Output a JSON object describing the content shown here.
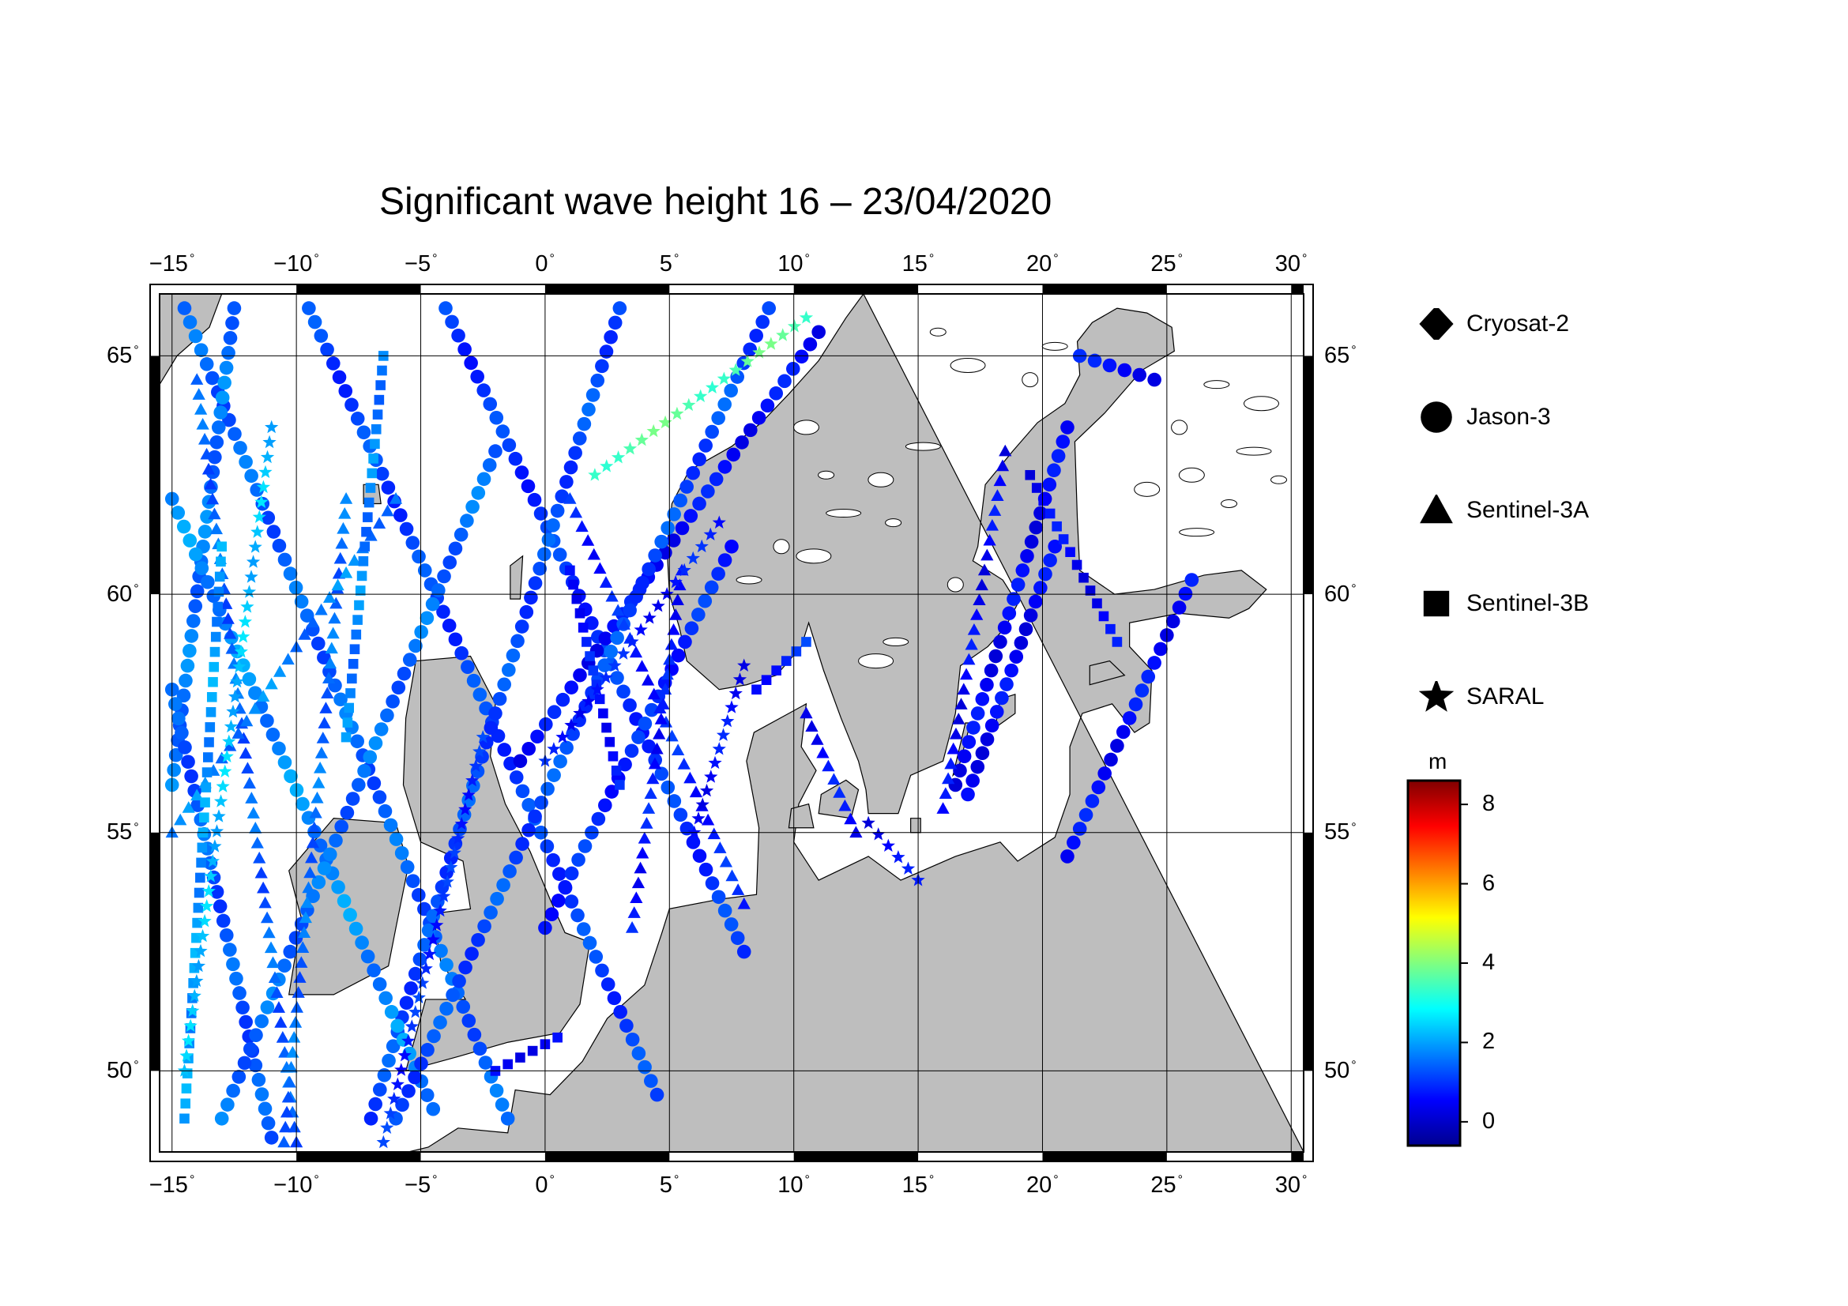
{
  "title": "Significant wave height 16 – 23/04/2020",
  "map": {
    "lon_min": -15.5,
    "lon_max": 30.5,
    "lat_min": 48.3,
    "lat_max": 66.3,
    "x_ticks": [
      {
        "value": -15,
        "label": "−15"
      },
      {
        "value": -10,
        "label": "−10"
      },
      {
        "value": -5,
        "label": "−5"
      },
      {
        "value": 0,
        "label": "0"
      },
      {
        "value": 5,
        "label": "5"
      },
      {
        "value": 10,
        "label": "10"
      },
      {
        "value": 15,
        "label": "15"
      },
      {
        "value": 20,
        "label": "20"
      },
      {
        "value": 25,
        "label": "25"
      },
      {
        "value": 30,
        "label": "30"
      }
    ],
    "y_ticks": [
      {
        "value": 50,
        "label": "50"
      },
      {
        "value": 55,
        "label": "55"
      },
      {
        "value": 60,
        "label": "60"
      },
      {
        "value": 65,
        "label": "65"
      }
    ],
    "land_color": "#bebebe",
    "sea_color": "#ffffff",
    "grid": true
  },
  "legend": [
    {
      "symbol": "diamond-icon",
      "label": "Cryosat-2"
    },
    {
      "symbol": "circle-icon",
      "label": "Jason-3"
    },
    {
      "symbol": "triangle-icon",
      "label": "Sentinel-3A"
    },
    {
      "symbol": "square-icon",
      "label": "Sentinel-3B"
    },
    {
      "symbol": "star-icon",
      "label": "SARAL"
    }
  ],
  "colorbar": {
    "unit": "m",
    "min": -0.6,
    "max": 8.6,
    "ticks": [
      {
        "value": 0,
        "label": "0"
      },
      {
        "value": 2,
        "label": "2"
      },
      {
        "value": 4,
        "label": "4"
      },
      {
        "value": 6,
        "label": "6"
      },
      {
        "value": 8,
        "label": "8"
      }
    ],
    "colors": [
      "#00008f",
      "#0000ff",
      "#0080ff",
      "#00ffff",
      "#80ff80",
      "#ffff00",
      "#ff8000",
      "#ff0000",
      "#800000"
    ]
  },
  "chart_data": {
    "type": "scatter",
    "x_label": "",
    "y_label": "",
    "note_units": "lon/lat degrees; swh metres (approximate readings)",
    "series": [
      {
        "name": "Jason-3",
        "marker": "circle",
        "tracks": [
          {
            "from": [
              -14.5,
              66.0
            ],
            "to": [
              -1.5,
              49.0
            ],
            "swh": 1.4
          },
          {
            "from": [
              -9.5,
              66.0
            ],
            "to": [
              4.5,
              49.5
            ],
            "swh": 1.1
          },
          {
            "from": [
              -4.0,
              66.0
            ],
            "to": [
              8.0,
              52.5
            ],
            "swh": 1.0
          },
          {
            "from": [
              3.0,
              66.0
            ],
            "to": [
              -7.0,
              49.0
            ],
            "swh": 1.2
          },
          {
            "from": [
              -12.5,
              66.0
            ],
            "to": [
              -15.0,
              56.0
            ],
            "swh": 1.6
          },
          {
            "from": [
              11.0,
              65.5
            ],
            "to": [
              -1.0,
              56.5
            ],
            "swh": 0.6
          },
          {
            "from": [
              -15.0,
              62.0
            ],
            "to": [
              -4.5,
              49.2
            ],
            "swh": 1.8
          },
          {
            "from": [
              -15.0,
              58.0
            ],
            "to": [
              -11.0,
              48.6
            ],
            "swh": 1.3
          },
          {
            "from": [
              -13.0,
              49.0
            ],
            "to": [
              -2.0,
              63.0
            ],
            "swh": 1.5
          },
          {
            "from": [
              -6.0,
              49.0
            ],
            "to": [
              9.0,
              66.0
            ],
            "swh": 1.2
          },
          {
            "from": [
              0.0,
              53.0
            ],
            "to": [
              7.5,
              61.0
            ],
            "swh": 0.9
          },
          {
            "from": [
              16.5,
              56.0
            ],
            "to": [
              21.0,
              63.5
            ],
            "swh": 0.5
          },
          {
            "from": [
              21.0,
              54.5
            ],
            "to": [
              26.0,
              60.3
            ],
            "swh": 0.6
          },
          {
            "from": [
              20.5,
              61.0
            ],
            "to": [
              17.0,
              55.8
            ],
            "swh": 0.5
          },
          {
            "from": [
              21.5,
              65.0
            ],
            "to": [
              24.5,
              64.5
            ],
            "swh": 0.6
          }
        ]
      },
      {
        "name": "Sentinel-3A",
        "marker": "triangle",
        "tracks": [
          {
            "from": [
              -14.0,
              64.5
            ],
            "to": [
              -10.0,
              48.5
            ],
            "swh": 1.4
          },
          {
            "from": [
              -8.0,
              62.0
            ],
            "to": [
              -10.5,
              48.5
            ],
            "swh": 1.5
          },
          {
            "from": [
              1.0,
              62.0
            ],
            "to": [
              8.0,
              53.5
            ],
            "swh": 0.8
          },
          {
            "from": [
              5.5,
              60.5
            ],
            "to": [
              3.5,
              53.0
            ],
            "swh": 0.7
          },
          {
            "from": [
              10.5,
              57.5
            ],
            "to": [
              12.5,
              55.0
            ],
            "swh": 0.6
          },
          {
            "from": [
              18.5,
              63.0
            ],
            "to": [
              16.0,
              55.5
            ],
            "swh": 0.5
          },
          {
            "from": [
              -15.0,
              55.0
            ],
            "to": [
              -6.0,
              62.0
            ],
            "swh": 1.7
          }
        ]
      },
      {
        "name": "Sentinel-3B",
        "marker": "square",
        "tracks": [
          {
            "from": [
              -14.5,
              49.0
            ],
            "to": [
              -13.0,
              61.0
            ],
            "swh": 1.9
          },
          {
            "from": [
              -8.0,
              57.0
            ],
            "to": [
              -6.5,
              65.0
            ],
            "swh": 1.7
          },
          {
            "from": [
              3.0,
              56.0
            ],
            "to": [
              1.0,
              60.5
            ],
            "swh": 0.7
          },
          {
            "from": [
              -2.0,
              50.0
            ],
            "to": [
              0.5,
              50.7
            ],
            "swh": 0.6
          },
          {
            "from": [
              8.5,
              58.0
            ],
            "to": [
              10.5,
              59.0
            ],
            "swh": 0.9
          },
          {
            "from": [
              19.5,
              62.5
            ],
            "to": [
              23.0,
              59.0
            ],
            "swh": 0.5
          }
        ]
      },
      {
        "name": "SARAL",
        "marker": "star",
        "tracks": [
          {
            "from": [
              -14.5,
              50.0
            ],
            "to": [
              -11.0,
              63.5
            ],
            "swh": 2.3
          },
          {
            "from": [
              -6.5,
              48.5
            ],
            "to": [
              -2.5,
              57.0
            ],
            "swh": 0.9
          },
          {
            "from": [
              0.0,
              56.5
            ],
            "to": [
              7.0,
              61.5
            ],
            "swh": 0.7
          },
          {
            "from": [
              6.0,
              55.0
            ],
            "to": [
              8.0,
              58.5
            ],
            "swh": 0.6
          },
          {
            "from": [
              2.0,
              62.5
            ],
            "to": [
              10.5,
              65.8
            ],
            "swh": 3.6
          },
          {
            "from": [
              13.0,
              55.2
            ],
            "to": [
              15.0,
              54.0
            ],
            "swh": 0.5
          }
        ]
      }
    ]
  }
}
